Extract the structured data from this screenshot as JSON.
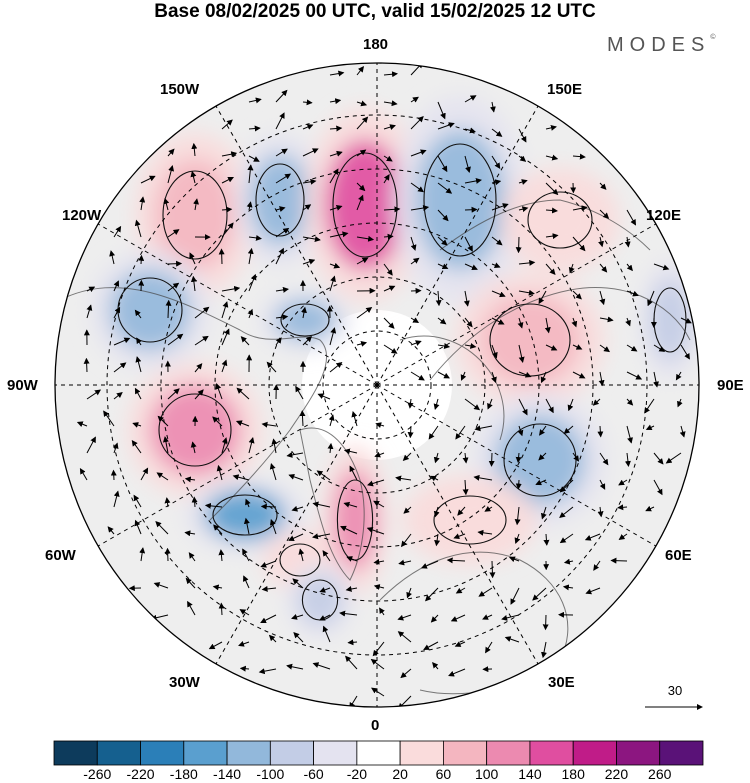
{
  "title": "Base 08/02/2025 00 UTC, valid 15/02/2025 12 UTC",
  "brand": "MODES",
  "brand_mark": "©",
  "meridian_labels": {
    "top": "180",
    "top_left": "150W",
    "top_right": "150E",
    "upper_left": "120W",
    "upper_right": "120E",
    "left": "90W",
    "right": "90E",
    "lower_left": "60W",
    "lower_right": "60E",
    "bottom_left": "30W",
    "bottom_right": "30E",
    "bottom": "0"
  },
  "vector_reference": "30",
  "colorbar": {
    "ticks": [
      "-260",
      "-220",
      "-180",
      "-140",
      "-100",
      "-60",
      "-20",
      "20",
      "60",
      "100",
      "140",
      "180",
      "220",
      "260"
    ],
    "colors": [
      "#0d3b5c",
      "#15608f",
      "#2b7fb8",
      "#5a9fcf",
      "#92b8db",
      "#c3cde6",
      "#e4e3f0",
      "#ffffff",
      "#fadcdc",
      "#f4b6c0",
      "#ec8ab0",
      "#e04ea0",
      "#c01c88",
      "#8c1680",
      "#5a1278"
    ]
  },
  "anomaly_palette": {
    "neutral": "#eeeeee",
    "land_outline": "#444444",
    "grid": "#000000"
  },
  "anomaly_centers": [
    {
      "name": "pos-1",
      "sign": "positive",
      "level": 100
    },
    {
      "name": "neg-1",
      "sign": "negative",
      "level": -100
    },
    {
      "name": "pos-2",
      "sign": "positive",
      "level": 180
    },
    {
      "name": "neg-2",
      "sign": "negative",
      "level": -100
    },
    {
      "name": "pos-3",
      "sign": "positive",
      "level": 60
    },
    {
      "name": "neg-3",
      "sign": "negative",
      "level": -100
    },
    {
      "name": "pos-4",
      "sign": "positive",
      "level": 100
    },
    {
      "name": "pos-5",
      "sign": "positive",
      "level": 140
    },
    {
      "name": "neg-4",
      "sign": "negative",
      "level": -100
    },
    {
      "name": "neg-5",
      "sign": "negative",
      "level": -140
    },
    {
      "name": "pos-6",
      "sign": "positive",
      "level": 140
    },
    {
      "name": "neg-6",
      "sign": "negative",
      "level": -100
    },
    {
      "name": "pos-7",
      "sign": "positive",
      "level": 60
    },
    {
      "name": "neg-7",
      "sign": "negative",
      "level": -60
    },
    {
      "name": "pos-8",
      "sign": "positive",
      "level": 60
    },
    {
      "name": "neg-8",
      "sign": "negative",
      "level": -60
    }
  ]
}
